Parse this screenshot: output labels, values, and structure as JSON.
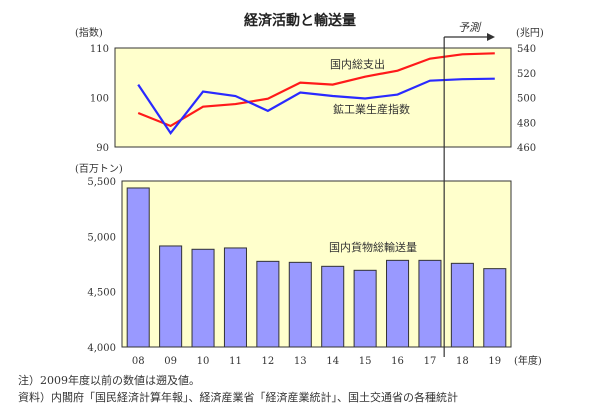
{
  "chart_data": [
    {
      "type": "line",
      "title": "経済活動と輸送量",
      "categories": [
        "08",
        "09",
        "10",
        "11",
        "12",
        "13",
        "14",
        "15",
        "16",
        "17",
        "18",
        "19"
      ],
      "left_axis": {
        "label": "(指数)",
        "ylim": [
          90,
          110
        ],
        "ticks": [
          "90",
          "100",
          "110"
        ]
      },
      "right_axis": {
        "label": "(兆円)",
        "ylim": [
          460,
          540
        ],
        "ticks": [
          "460",
          "480",
          "500",
          "520",
          "540"
        ]
      },
      "series": [
        {
          "name": "国内総支出",
          "axis": "right",
          "color": "#ff1a1a",
          "values": [
            487.5,
            477,
            492.6,
            494.7,
            499,
            512,
            510.4,
            516.8,
            521.7,
            531.4,
            534.9,
            535.7
          ]
        },
        {
          "name": "鉱工業生産指数",
          "axis": "left",
          "color": "#2a2aff",
          "values": [
            102.6,
            92.8,
            101.2,
            100.3,
            97.3,
            101.0,
            100.3,
            99.8,
            100.6,
            103.4,
            103.7,
            103.8
          ]
        }
      ],
      "forecast_label": "予測",
      "forecast_from": "18",
      "grid": false
    },
    {
      "type": "bar",
      "categories": [
        "08",
        "09",
        "10",
        "11",
        "12",
        "13",
        "14",
        "15",
        "16",
        "17",
        "18",
        "19"
      ],
      "xlabel": "(年度)",
      "ylabel": "(百万トン)",
      "ylim": [
        4000,
        5500
      ],
      "ticks": [
        "4,000",
        "4,500",
        "5,000",
        "5,500"
      ],
      "series": [
        {
          "name": "国内貨物総輸送量",
          "color": "#9999ff",
          "values": [
            5437,
            4913,
            4883,
            4895,
            4774,
            4765,
            4729,
            4693,
            4783,
            4783,
            4756,
            4708
          ]
        }
      ],
      "grid": false
    }
  ],
  "notes": {
    "note": "注）2009年度以前の数値は遡及値。",
    "source": "資料）内閣府「国民経済計算年報」、経済産業省「経済産業統計」、国土交通省の各種統計"
  }
}
